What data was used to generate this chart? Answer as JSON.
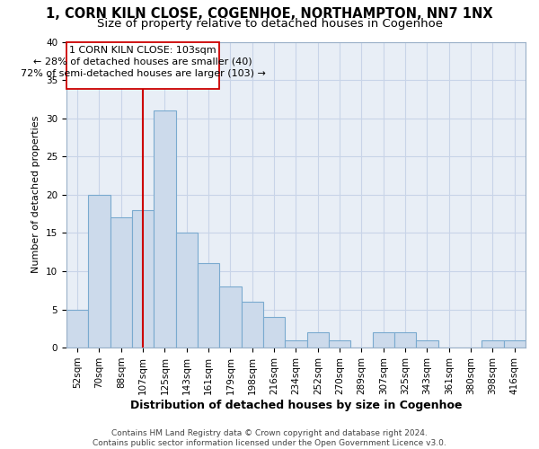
{
  "title": "1, CORN KILN CLOSE, COGENHOE, NORTHAMPTON, NN7 1NX",
  "subtitle": "Size of property relative to detached houses in Cogenhoe",
  "xlabel": "Distribution of detached houses by size in Cogenhoe",
  "ylabel": "Number of detached properties",
  "categories": [
    "52sqm",
    "70sqm",
    "88sqm",
    "107sqm",
    "125sqm",
    "143sqm",
    "161sqm",
    "179sqm",
    "198sqm",
    "216sqm",
    "234sqm",
    "252sqm",
    "270sqm",
    "289sqm",
    "307sqm",
    "325sqm",
    "343sqm",
    "361sqm",
    "380sqm",
    "398sqm",
    "416sqm"
  ],
  "values": [
    5,
    20,
    17,
    18,
    31,
    15,
    11,
    8,
    6,
    4,
    1,
    2,
    1,
    0,
    2,
    2,
    1,
    0,
    0,
    1,
    1
  ],
  "bar_color": "#ccdaeb",
  "bar_edge_color": "#7aaacf",
  "vline_x_index": 3,
  "vline_color": "#cc0000",
  "annotation_line1": "1 CORN KILN CLOSE: 103sqm",
  "annotation_line2": "← 28% of detached houses are smaller (40)",
  "annotation_line3": "72% of semi-detached houses are larger (103) →",
  "annotation_box_color": "white",
  "annotation_box_edge_color": "#cc0000",
  "ylim": [
    0,
    40
  ],
  "yticks": [
    0,
    5,
    10,
    15,
    20,
    25,
    30,
    35,
    40
  ],
  "grid_color": "#c8d4e8",
  "bg_color": "#e8eef6",
  "footer_line1": "Contains HM Land Registry data © Crown copyright and database right 2024.",
  "footer_line2": "Contains public sector information licensed under the Open Government Licence v3.0.",
  "title_fontsize": 10.5,
  "subtitle_fontsize": 9.5,
  "xlabel_fontsize": 9,
  "ylabel_fontsize": 8,
  "tick_fontsize": 7.5,
  "annotation_fontsize": 8,
  "footer_fontsize": 6.5
}
